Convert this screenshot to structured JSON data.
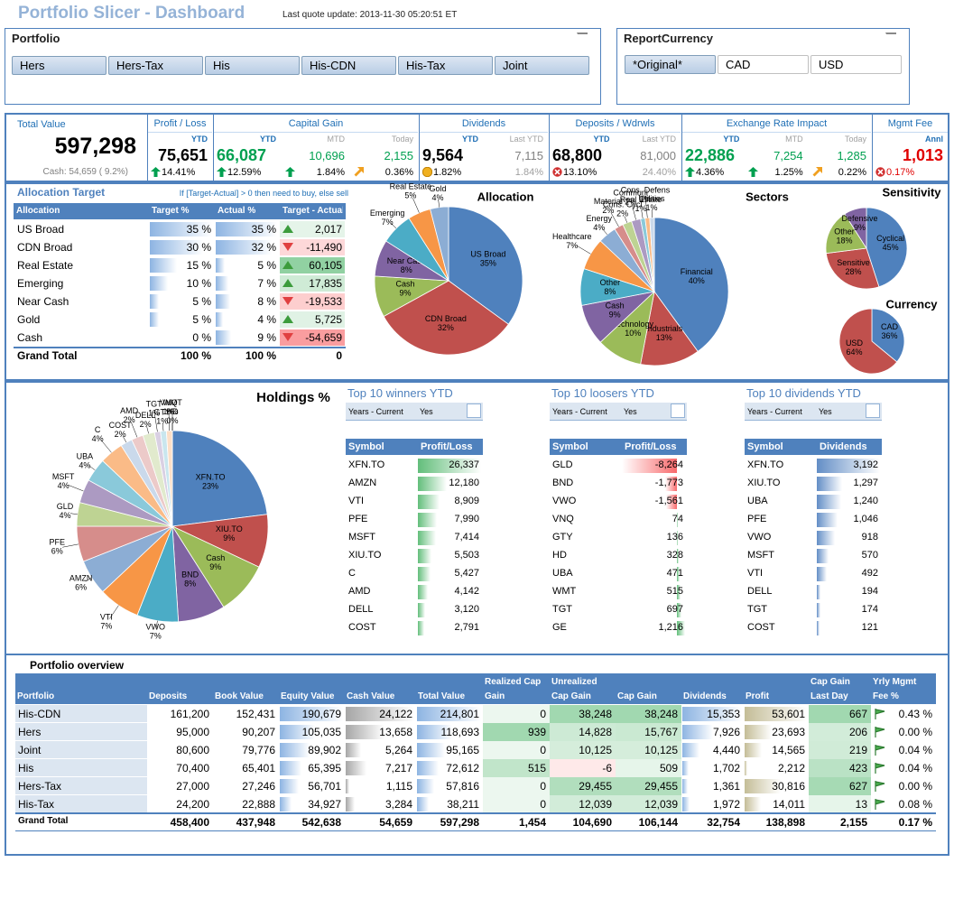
{
  "header": {
    "title": "Portfolio Slicer - Dashboard",
    "update": "Last quote update: 2013-11-30 05:20:51 ET"
  },
  "slicers": [
    {
      "title": "Portfolio",
      "buttons": [
        {
          "label": "Hers",
          "selected": true
        },
        {
          "label": "Hers-Tax",
          "selected": true
        },
        {
          "label": "His",
          "selected": true
        },
        {
          "label": "His-CDN",
          "selected": true
        },
        {
          "label": "His-Tax",
          "selected": true
        },
        {
          "label": "Joint",
          "selected": true
        }
      ]
    },
    {
      "title": "ReportCurrency",
      "buttons": [
        {
          "label": "*Original*",
          "selected": true
        },
        {
          "label": "CAD",
          "selected": false
        },
        {
          "label": "USD",
          "selected": false
        }
      ]
    }
  ],
  "kpi": {
    "total": {
      "title": "Total Value",
      "value": "597,298",
      "caption": "Cash: 54,659 ( 9.2%)"
    },
    "groups": [
      {
        "title": "Profit / Loss",
        "cols": [
          {
            "label": "YTD",
            "value": "75,651",
            "pct": "14.41%",
            "icon": "up",
            "color": "#000000"
          }
        ]
      },
      {
        "title": "Capital Gain",
        "cols": [
          {
            "label": "YTD",
            "value": "66,087",
            "pct": "12.59%",
            "icon": "up",
            "color": "#00A050"
          },
          {
            "label": "MTD",
            "value": "10,696",
            "pct": "1.84%",
            "icon": "up",
            "color": "#00A050"
          },
          {
            "label": "Today",
            "value": "2,155",
            "pct": "0.36%",
            "icon": "diag",
            "color": "#00A050"
          }
        ]
      },
      {
        "title": "Dividends",
        "cols": [
          {
            "label": "YTD",
            "value": "9,564",
            "pct": "1.82%",
            "icon": "neutral",
            "color": "#000000"
          },
          {
            "label": "Last YTD",
            "value": "7,115",
            "pct": "1.84%",
            "icon": "none",
            "color": "#808080"
          }
        ]
      },
      {
        "title": "Deposits / Wdrwls",
        "cols": [
          {
            "label": "YTD",
            "value": "68,800",
            "pct": "13.10%",
            "icon": "x",
            "color": "#000000"
          },
          {
            "label": "Last YTD",
            "value": "81,000",
            "pct": "24.40%",
            "icon": "none",
            "color": "#808080"
          }
        ]
      },
      {
        "title": "Exchange Rate Impact",
        "cols": [
          {
            "label": "YTD",
            "value": "22,886",
            "pct": "4.36%",
            "icon": "up",
            "color": "#00A050"
          },
          {
            "label": "MTD",
            "value": "7,254",
            "pct": "1.25%",
            "icon": "up",
            "color": "#00A050"
          },
          {
            "label": "Today",
            "value": "1,285",
            "pct": "0.22%",
            "icon": "diag",
            "color": "#00A050"
          }
        ]
      },
      {
        "title": "Mgmt Fee",
        "cols": [
          {
            "label": "Annl",
            "value": "1,013",
            "pct": "0.17%",
            "icon": "x",
            "color": "#E00000"
          }
        ]
      }
    ]
  },
  "allocation_table": {
    "title": "Allocation Target",
    "note": "If [Target-Actual] > 0 then need to buy, else sell",
    "headers": [
      "Allocation",
      "Target %",
      "Actual %",
      "Target - Actual"
    ],
    "rows": [
      [
        "US Broad",
        "35 %",
        "35 %",
        "2,017"
      ],
      [
        "CDN Broad",
        "30 %",
        "32 %",
        "-11,490"
      ],
      [
        "Real Estate",
        "15 %",
        "5 %",
        "60,105"
      ],
      [
        "Emerging",
        "10 %",
        "7 %",
        "17,835"
      ],
      [
        "Near Cash",
        "5 %",
        "8 %",
        "-19,533"
      ],
      [
        "Gold",
        "5 %",
        "4 %",
        "5,725"
      ],
      [
        "Cash",
        "0 %",
        "9 %",
        "-54,659"
      ]
    ],
    "total": [
      "Grand Total",
      "100 %",
      "100 %",
      "0"
    ]
  },
  "palette": [
    "#4F81BD",
    "#C0504D",
    "#9BBB59",
    "#8064A2",
    "#4BACC6",
    "#F79646"
  ],
  "pies": [
    {
      "title": "Allocation",
      "labels": [
        "US Broad",
        "CDN Broad",
        "Cash",
        "Near Cash",
        "Emerging",
        "Real Estate",
        "Gold"
      ],
      "values": [
        35,
        32,
        9,
        8,
        7,
        5,
        4
      ],
      "value_labels": [
        "35%",
        "32%",
        "9%",
        "8%",
        "7%",
        "5%",
        "4%"
      ]
    },
    {
      "title": "Sectors",
      "labels": [
        "Financial",
        "Industrials",
        "Technology",
        "Cash",
        "Other",
        "Healthcare",
        "Energy",
        "Material",
        "Cons. Cycl",
        "Communi",
        "Real Estate",
        "Cons. Defens",
        "Utilities"
      ],
      "values": [
        40,
        13,
        10,
        9,
        8,
        7,
        4,
        2,
        2,
        2,
        1,
        1,
        1
      ],
      "value_labels": [
        "40%",
        "13%",
        "10%",
        "9%",
        "8%",
        "7%",
        "4%",
        "2%",
        "2%",
        "2%",
        "1%",
        "1%",
        "1%"
      ]
    },
    {
      "title": "Sensitivity",
      "labels": [
        "Cyclical",
        "Sensitive",
        "Other",
        "Defensive"
      ],
      "values": [
        45,
        28,
        18,
        9
      ],
      "value_labels": [
        "45%",
        "28%",
        "18%",
        "9%"
      ]
    },
    {
      "title": "Currency",
      "labels": [
        "CAD",
        "USD"
      ],
      "values": [
        36,
        64
      ],
      "value_labels": [
        "36%",
        "64%"
      ]
    },
    {
      "title": "Holdings %",
      "labels": [
        "XFN.TO",
        "XIU.TO",
        "Cash",
        "BND",
        "VWO",
        "VTI",
        "AMZN",
        "PFE",
        "GLD",
        "MSFT",
        "UBA",
        "C",
        "COST",
        "AMD",
        "DELL",
        "TGT",
        "GTY",
        "VNQ",
        "HD",
        "WMT"
      ],
      "values": [
        23,
        9,
        9,
        8,
        7,
        7,
        6,
        6,
        4,
        4,
        4,
        4,
        2,
        2,
        2,
        1,
        1,
        1,
        0,
        0
      ],
      "value_labels": [
        "23%",
        "9%",
        "9%",
        "8%",
        "7%",
        "7%",
        "6%",
        "6%",
        "4%",
        "4%",
        "4%",
        "4%",
        "2%",
        "2%",
        "2%",
        "1%",
        "1%",
        "1%",
        "0%",
        "0%"
      ]
    }
  ],
  "top10": [
    {
      "title": "Top 10 winners YTD",
      "filter": [
        "Years - Current",
        "Yes"
      ],
      "headers": [
        "Symbol",
        "Profit/Loss"
      ],
      "bar_color": "#63BE7B",
      "rows": [
        [
          "XFN.TO",
          "26,337"
        ],
        [
          "AMZN",
          "12,180"
        ],
        [
          "VTI",
          "8,909"
        ],
        [
          "PFE",
          "7,990"
        ],
        [
          "MSFT",
          "7,414"
        ],
        [
          "XIU.TO",
          "5,503"
        ],
        [
          "C",
          "5,427"
        ],
        [
          "AMD",
          "4,142"
        ],
        [
          "DELL",
          "3,120"
        ],
        [
          "COST",
          "2,791"
        ]
      ]
    },
    {
      "title": "Top 10 loosers YTD",
      "filter": [
        "Years - Current",
        "Yes"
      ],
      "headers": [
        "Symbol",
        "Profit/Loss"
      ],
      "bar_color": "#63BE7B",
      "rows": [
        [
          "GLD",
          "-8,264"
        ],
        [
          "BND",
          "-1,773"
        ],
        [
          "VWO",
          "-1,561"
        ],
        [
          "VNQ",
          "74"
        ],
        [
          "GTY",
          "136"
        ],
        [
          "HD",
          "328"
        ],
        [
          "UBA",
          "471"
        ],
        [
          "WMT",
          "515"
        ],
        [
          "TGT",
          "697"
        ],
        [
          "GE",
          "1,216"
        ]
      ]
    },
    {
      "title": "Top 10 dividends YTD",
      "filter": [
        "Years - Current",
        "Yes"
      ],
      "headers": [
        "Symbol",
        "Dividends"
      ],
      "bar_color": "#638EC6",
      "rows": [
        [
          "XFN.TO",
          "3,192"
        ],
        [
          "XIU.TO",
          "1,297"
        ],
        [
          "UBA",
          "1,240"
        ],
        [
          "PFE",
          "1,046"
        ],
        [
          "VWO",
          "918"
        ],
        [
          "MSFT",
          "570"
        ],
        [
          "VTI",
          "492"
        ],
        [
          "DELL",
          "194"
        ],
        [
          "TGT",
          "174"
        ],
        [
          "COST",
          "121"
        ]
      ]
    }
  ],
  "overview": {
    "title": "Portfolio overview",
    "headers": [
      "Portfolio",
      "Deposits",
      "Book Value",
      "Equity Value",
      "Cash Value",
      "Total Value",
      "Realized Cap Gain",
      "Unrealized Cap Gain",
      "Cap Gain",
      "Dividends",
      "Profit",
      "Cap Gain Last Day",
      "Yrly Mgmt Fee %"
    ],
    "rows": [
      [
        "His-CDN",
        "161,200",
        "152,431",
        "190,679",
        "24,122",
        "214,801",
        "0",
        "38,248",
        "38,248",
        "15,353",
        "53,601",
        "667",
        "0.43 %"
      ],
      [
        "Hers",
        "95,000",
        "90,207",
        "105,035",
        "13,658",
        "118,693",
        "939",
        "14,828",
        "15,767",
        "7,926",
        "23,693",
        "206",
        "0.00 %"
      ],
      [
        "Joint",
        "80,600",
        "79,776",
        "89,902",
        "5,264",
        "95,165",
        "0",
        "10,125",
        "10,125",
        "4,440",
        "14,565",
        "219",
        "0.04 %"
      ],
      [
        "His",
        "70,400",
        "65,401",
        "65,395",
        "7,217",
        "72,612",
        "515",
        "-6",
        "509",
        "1,702",
        "2,212",
        "423",
        "0.04 %"
      ],
      [
        "Hers-Tax",
        "27,000",
        "27,246",
        "56,701",
        "1,115",
        "57,816",
        "0",
        "29,455",
        "29,455",
        "1,361",
        "30,816",
        "627",
        "0.00 %"
      ],
      [
        "His-Tax",
        "24,200",
        "22,888",
        "34,927",
        "3,284",
        "38,211",
        "0",
        "12,039",
        "12,039",
        "1,972",
        "14,011",
        "13",
        "0.08 %"
      ]
    ],
    "total": [
      "Grand Total",
      "458,400",
      "437,948",
      "542,638",
      "54,659",
      "597,298",
      "1,454",
      "104,690",
      "106,144",
      "32,754",
      "138,898",
      "2,155",
      "0.17 %"
    ]
  }
}
